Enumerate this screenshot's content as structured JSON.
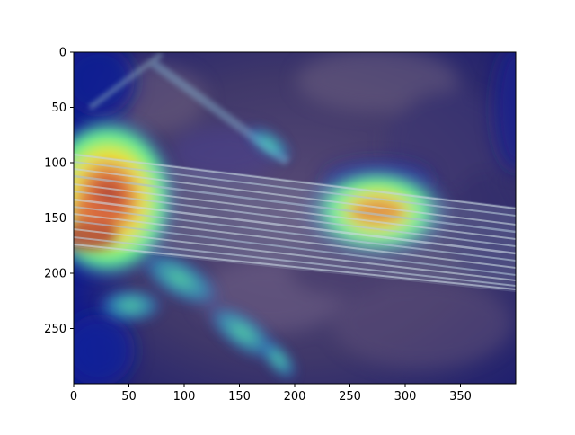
{
  "plot": {
    "type": "image-with-heatmap-overlay",
    "xlim": [
      0,
      400
    ],
    "ylim": [
      300,
      0
    ],
    "xticks": [
      {
        "value": 0,
        "label": "0"
      },
      {
        "value": 50,
        "label": "50"
      },
      {
        "value": 100,
        "label": "100"
      },
      {
        "value": 150,
        "label": "150"
      },
      {
        "value": 200,
        "label": "200"
      },
      {
        "value": 250,
        "label": "250"
      },
      {
        "value": 300,
        "label": "300"
      },
      {
        "value": 350,
        "label": "350"
      }
    ],
    "yticks": [
      {
        "value": 0,
        "label": "0"
      },
      {
        "value": 50,
        "label": "50"
      },
      {
        "value": 100,
        "label": "100"
      },
      {
        "value": 150,
        "label": "150"
      },
      {
        "value": 200,
        "label": "200"
      },
      {
        "value": 250,
        "label": "250"
      }
    ],
    "colors": {
      "background": "#3a2f5a",
      "heat_low": "#1a1a9c",
      "heat_mid": "#3fe3b4",
      "heat_high": "#f5f540",
      "heat_peak": "#c2331b"
    }
  }
}
